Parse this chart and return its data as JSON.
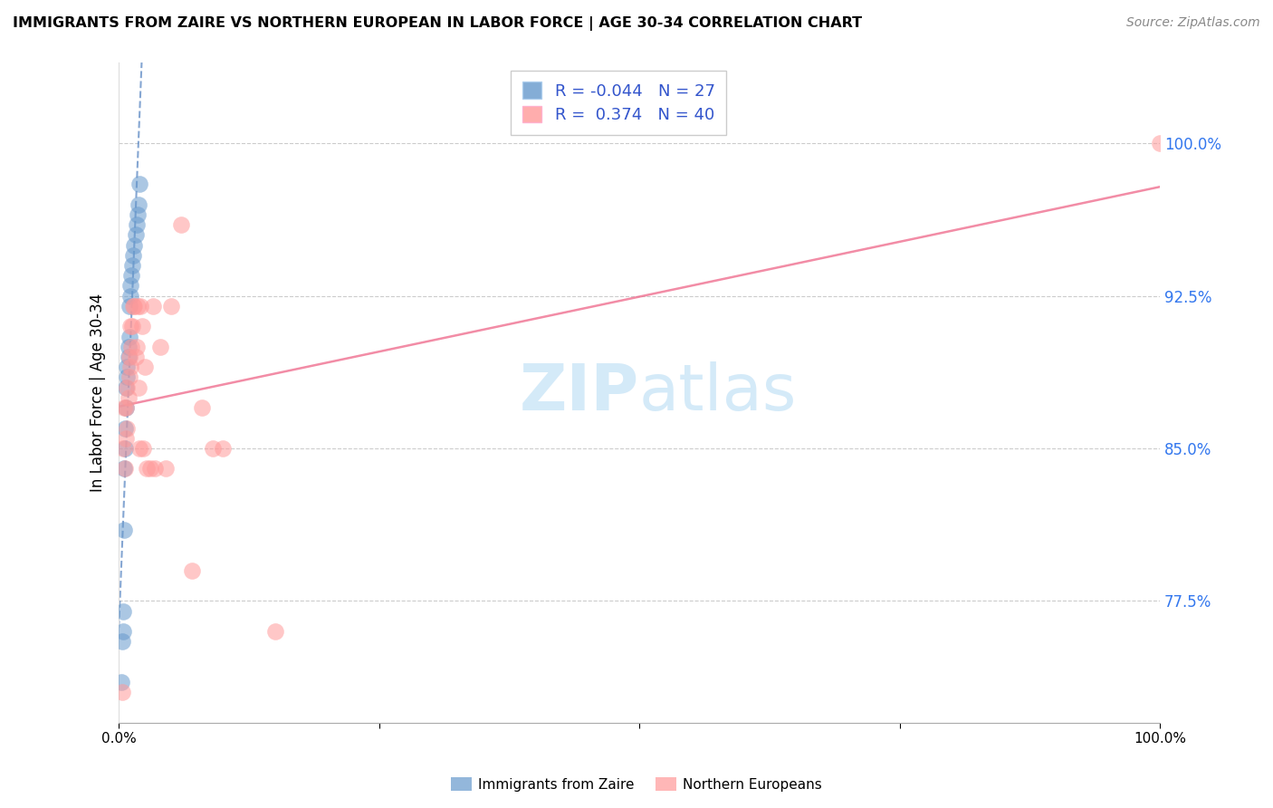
{
  "title": "IMMIGRANTS FROM ZAIRE VS NORTHERN EUROPEAN IN LABOR FORCE | AGE 30-34 CORRELATION CHART",
  "source": "Source: ZipAtlas.com",
  "ylabel": "In Labor Force | Age 30-34",
  "xlim": [
    0.0,
    1.0
  ],
  "ylim": [
    0.715,
    1.04
  ],
  "yticks": [
    0.775,
    0.85,
    0.925,
    1.0
  ],
  "ytick_labels": [
    "77.5%",
    "85.0%",
    "92.5%",
    "100.0%"
  ],
  "xticks": [
    0.0,
    0.25,
    0.5,
    0.75,
    1.0
  ],
  "xtick_labels": [
    "0.0%",
    "",
    "",
    "",
    "100.0%"
  ],
  "blue_color": "#6699CC",
  "pink_color": "#FF9999",
  "blue_line_color": "#4477BB",
  "pink_line_color": "#EE6688",
  "blue_r": -0.044,
  "blue_n": 27,
  "pink_r": 0.374,
  "pink_n": 40,
  "blue_label": "Immigrants from Zaire",
  "pink_label": "Northern Europeans",
  "background_color": "#ffffff",
  "blue_scatter_x": [
    0.002,
    0.003,
    0.004,
    0.004,
    0.005,
    0.005,
    0.006,
    0.006,
    0.007,
    0.007,
    0.008,
    0.008,
    0.009,
    0.009,
    0.01,
    0.01,
    0.011,
    0.011,
    0.012,
    0.013,
    0.014,
    0.015,
    0.016,
    0.017,
    0.018,
    0.019,
    0.02
  ],
  "blue_scatter_y": [
    0.735,
    0.755,
    0.76,
    0.77,
    0.81,
    0.84,
    0.85,
    0.86,
    0.87,
    0.88,
    0.885,
    0.89,
    0.895,
    0.9,
    0.905,
    0.92,
    0.925,
    0.93,
    0.935,
    0.94,
    0.945,
    0.95,
    0.955,
    0.96,
    0.965,
    0.97,
    0.98
  ],
  "pink_scatter_x": [
    0.003,
    0.004,
    0.005,
    0.006,
    0.007,
    0.007,
    0.008,
    0.008,
    0.009,
    0.01,
    0.01,
    0.011,
    0.011,
    0.012,
    0.013,
    0.014,
    0.015,
    0.016,
    0.017,
    0.018,
    0.019,
    0.02,
    0.021,
    0.022,
    0.023,
    0.025,
    0.027,
    0.03,
    0.033,
    0.035,
    0.04,
    0.045,
    0.05,
    0.06,
    0.07,
    0.08,
    0.09,
    0.1,
    0.15,
    1.0
  ],
  "pink_scatter_y": [
    0.73,
    0.85,
    0.87,
    0.84,
    0.855,
    0.87,
    0.86,
    0.88,
    0.875,
    0.885,
    0.895,
    0.89,
    0.91,
    0.9,
    0.91,
    0.92,
    0.92,
    0.895,
    0.9,
    0.92,
    0.88,
    0.85,
    0.92,
    0.91,
    0.85,
    0.89,
    0.84,
    0.84,
    0.92,
    0.84,
    0.9,
    0.84,
    0.92,
    0.96,
    0.79,
    0.87,
    0.85,
    0.85,
    0.76,
    1.0
  ]
}
